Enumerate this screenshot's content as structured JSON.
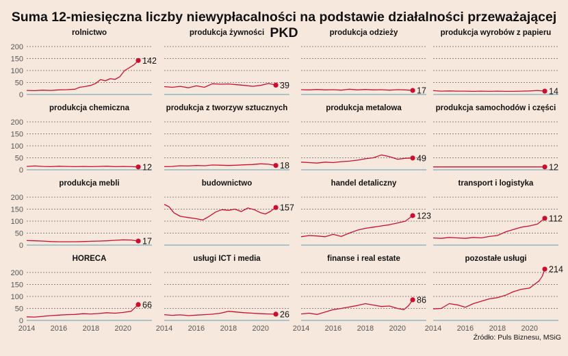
{
  "chart_data": {
    "type": "line",
    "title": "Suma 12-miesięczna liczby niewypłacalności na podstawie działalności przeważającej PKD",
    "source": "Źródło: Puls Biznesu, MSiG",
    "y_ticks": [
      0,
      50,
      100,
      150,
      200
    ],
    "ylim": [
      0,
      220
    ],
    "x_ticks": [
      2014,
      2016,
      2018,
      2020
    ],
    "xlim": [
      2014,
      2021.8
    ],
    "grid": true,
    "line_color": "#c8102e",
    "baseline_color": "#5aa0b4",
    "panels": [
      {
        "name": "rolnictwo",
        "last_value": 142,
        "x": [
          2014.0,
          2014.5,
          2015.0,
          2015.5,
          2016.0,
          2016.5,
          2017.0,
          2017.3,
          2017.6,
          2018.0,
          2018.3,
          2018.6,
          2018.9,
          2019.2,
          2019.5,
          2019.8,
          2020.1,
          2020.4,
          2020.7,
          2020.95
        ],
        "y": [
          17,
          16,
          18,
          17,
          19,
          20,
          22,
          30,
          33,
          38,
          46,
          62,
          57,
          66,
          63,
          74,
          100,
          112,
          125,
          142
        ]
      },
      {
        "name": "produkcja żywności",
        "last_value": 39,
        "x": [
          2014.0,
          2014.5,
          2015.0,
          2015.5,
          2016.0,
          2016.5,
          2017.0,
          2017.5,
          2018.0,
          2018.5,
          2019.0,
          2019.5,
          2020.0,
          2020.5,
          2020.95
        ],
        "y": [
          33,
          30,
          34,
          28,
          36,
          30,
          45,
          43,
          44,
          41,
          38,
          34,
          38,
          46,
          39
        ]
      },
      {
        "name": "produkcja odzieży",
        "last_value": 17,
        "x": [
          2014.0,
          2014.5,
          2015.0,
          2015.5,
          2016.0,
          2016.5,
          2017.0,
          2017.5,
          2018.0,
          2018.5,
          2019.0,
          2019.5,
          2020.0,
          2020.5,
          2020.95
        ],
        "y": [
          20,
          19,
          21,
          19,
          20,
          18,
          22,
          19,
          21,
          19,
          20,
          18,
          20,
          19,
          17
        ]
      },
      {
        "name": "produkcja wyrobów z papieru",
        "last_value": 14,
        "x": [
          2014.0,
          2014.5,
          2015.0,
          2015.5,
          2016.0,
          2016.5,
          2017.0,
          2017.5,
          2018.0,
          2018.5,
          2019.0,
          2019.5,
          2020.0,
          2020.5,
          2020.95
        ],
        "y": [
          16,
          14,
          15,
          14,
          14,
          13,
          14,
          13,
          14,
          13,
          13,
          14,
          15,
          17,
          14
        ]
      },
      {
        "name": "produkcja chemiczna",
        "last_value": 12,
        "x": [
          2014.0,
          2014.5,
          2015.0,
          2015.5,
          2016.0,
          2016.5,
          2017.0,
          2017.5,
          2018.0,
          2018.5,
          2019.0,
          2019.5,
          2020.0,
          2020.5,
          2020.95
        ],
        "y": [
          14,
          16,
          14,
          13,
          15,
          14,
          13,
          14,
          13,
          14,
          15,
          13,
          14,
          13,
          12
        ]
      },
      {
        "name": "produkcja z tworzyw sztucznych",
        "last_value": 18,
        "x": [
          2014.0,
          2014.5,
          2015.0,
          2015.5,
          2016.0,
          2016.5,
          2017.0,
          2017.5,
          2018.0,
          2018.5,
          2019.0,
          2019.5,
          2020.0,
          2020.5,
          2020.95
        ],
        "y": [
          13,
          14,
          17,
          16,
          18,
          17,
          20,
          19,
          18,
          19,
          21,
          22,
          25,
          23,
          18
        ]
      },
      {
        "name": "produkcja metalowa",
        "last_value": 49,
        "x": [
          2014.0,
          2014.5,
          2015.0,
          2015.5,
          2016.0,
          2016.5,
          2017.0,
          2017.5,
          2018.0,
          2018.5,
          2019.0,
          2019.5,
          2020.0,
          2020.5,
          2020.95
        ],
        "y": [
          32,
          30,
          28,
          32,
          30,
          34,
          36,
          40,
          46,
          50,
          62,
          55,
          44,
          48,
          49
        ]
      },
      {
        "name": "produkcja samochodów i części",
        "last_value": 12,
        "x": [
          2014.0,
          2014.5,
          2015.0,
          2015.5,
          2016.0,
          2016.5,
          2017.0,
          2017.5,
          2018.0,
          2018.5,
          2019.0,
          2019.5,
          2020.0,
          2020.5,
          2020.95
        ],
        "y": [
          12,
          12,
          12,
          12,
          12,
          12,
          12,
          12,
          12,
          12,
          12,
          12,
          12,
          12,
          12
        ]
      },
      {
        "name": "produkcja mebli",
        "last_value": 17,
        "x": [
          2014.0,
          2014.5,
          2015.0,
          2015.5,
          2016.0,
          2016.5,
          2017.0,
          2017.5,
          2018.0,
          2018.5,
          2019.0,
          2019.5,
          2020.0,
          2020.5,
          2020.95
        ],
        "y": [
          19,
          18,
          17,
          15,
          14,
          14,
          14,
          15,
          16,
          17,
          18,
          20,
          22,
          21,
          17
        ]
      },
      {
        "name": "budownictwo",
        "last_value": 157,
        "x": [
          2014.0,
          2014.3,
          2014.6,
          2015.0,
          2015.5,
          2016.0,
          2016.4,
          2016.8,
          2017.2,
          2017.6,
          2018.0,
          2018.4,
          2018.8,
          2019.2,
          2019.6,
          2020.0,
          2020.3,
          2020.6,
          2020.95
        ],
        "y": [
          170,
          160,
          135,
          120,
          115,
          110,
          105,
          120,
          138,
          148,
          145,
          150,
          140,
          155,
          148,
          135,
          130,
          140,
          157
        ]
      },
      {
        "name": "handel detaliczny",
        "last_value": 123,
        "x": [
          2014.0,
          2014.5,
          2015.0,
          2015.5,
          2016.0,
          2016.5,
          2017.0,
          2017.5,
          2018.0,
          2018.5,
          2019.0,
          2019.5,
          2020.0,
          2020.5,
          2020.95
        ],
        "y": [
          35,
          40,
          38,
          35,
          45,
          36,
          50,
          62,
          70,
          75,
          80,
          85,
          92,
          100,
          123
        ]
      },
      {
        "name": "transport i logistyka",
        "last_value": 112,
        "x": [
          2014.0,
          2014.5,
          2015.0,
          2015.5,
          2016.0,
          2016.5,
          2017.0,
          2017.5,
          2018.0,
          2018.5,
          2019.0,
          2019.5,
          2020.0,
          2020.5,
          2020.95
        ],
        "y": [
          30,
          28,
          32,
          30,
          28,
          32,
          30,
          36,
          40,
          55,
          65,
          75,
          80,
          88,
          112
        ]
      },
      {
        "name": "HORECA",
        "last_value": 66,
        "x": [
          2014.0,
          2014.5,
          2015.0,
          2015.5,
          2016.0,
          2016.5,
          2017.0,
          2017.5,
          2018.0,
          2018.5,
          2019.0,
          2019.5,
          2020.0,
          2020.5,
          2020.95
        ],
        "y": [
          15,
          14,
          17,
          20,
          22,
          24,
          25,
          28,
          27,
          29,
          32,
          30,
          33,
          38,
          66
        ]
      },
      {
        "name": "usługi ICT i media",
        "last_value": 26,
        "x": [
          2014.0,
          2014.5,
          2015.0,
          2015.5,
          2016.0,
          2016.5,
          2017.0,
          2017.5,
          2018.0,
          2018.5,
          2019.0,
          2019.5,
          2020.0,
          2020.5,
          2020.95
        ],
        "y": [
          24,
          21,
          23,
          20,
          22,
          24,
          26,
          30,
          38,
          35,
          32,
          30,
          28,
          27,
          26
        ]
      },
      {
        "name": "finanse i real estate",
        "last_value": 86,
        "x": [
          2014.0,
          2014.5,
          2015.0,
          2015.5,
          2016.0,
          2016.5,
          2017.0,
          2017.5,
          2018.0,
          2018.5,
          2019.0,
          2019.5,
          2020.0,
          2020.4,
          2020.7,
          2020.95
        ],
        "y": [
          27,
          30,
          25,
          35,
          45,
          50,
          56,
          62,
          70,
          64,
          58,
          60,
          50,
          45,
          62,
          86
        ]
      },
      {
        "name": "pozostałe usługi",
        "last_value": 214,
        "x": [
          2014.0,
          2014.5,
          2015.0,
          2015.5,
          2016.0,
          2016.5,
          2017.0,
          2017.5,
          2018.0,
          2018.5,
          2019.0,
          2019.5,
          2020.0,
          2020.3,
          2020.6,
          2020.8,
          2020.95
        ],
        "y": [
          48,
          50,
          70,
          65,
          55,
          70,
          80,
          90,
          95,
          105,
          120,
          130,
          135,
          150,
          165,
          185,
          214
        ]
      }
    ]
  }
}
